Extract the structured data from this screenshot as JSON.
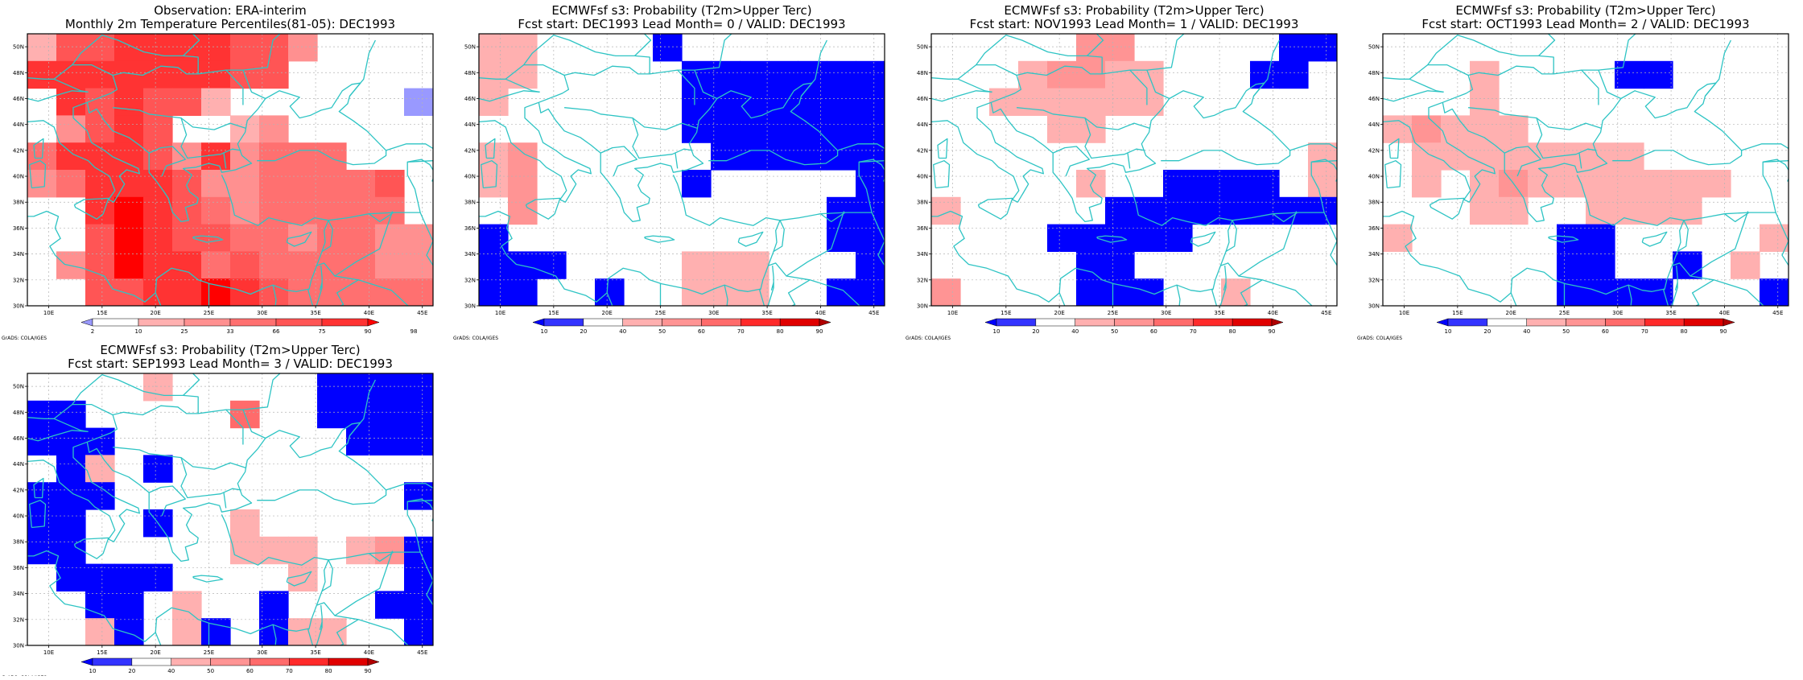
{
  "figure": {
    "credit": "GrADS: COLA/IGES"
  },
  "palettes": {
    "obs": [
      "#9999ff",
      "#ffffff",
      "#ffb0b0",
      "#ff9090",
      "#ff7070",
      "#ff5555",
      "#ff3333",
      "#ff0000"
    ],
    "prob": [
      "#0000ff",
      "#3333ff",
      "#ffffff",
      "#ffb0b0",
      "#ff9494",
      "#ff6b6b",
      "#ff2a2a",
      "#e00000",
      "#b00000"
    ]
  },
  "coastline_color": "#2ec4c4",
  "panels": [
    {
      "id": "obs",
      "title1": "Observation: ERA-interim",
      "title2": "Monthly 2m Temperature Percentiles(81-05): DEC1993",
      "palette": "obs",
      "colorbar": [
        "2",
        "10",
        "25",
        "33",
        "66",
        "75",
        "90",
        "98"
      ],
      "grid_rows": [
        "25566665531111",
        "66666665511111",
        "16565521111110",
        "13565112311111",
        "46665363444111",
        "34666533444451",
        "11676543444441",
        "11576554434433",
        "13576645444433",
        "11556676544444"
      ]
    },
    {
      "id": "lead0",
      "title1": "ECMWFsf s3: Probability (T2m>Upper Terc)",
      "title2": "Fcst start: DEC1993   Lead Month= 0 / VALID: DEC1993",
      "palette": "prob",
      "colorbar": [
        "10",
        "20",
        "40",
        "50",
        "60",
        "70",
        "80",
        "90"
      ],
      "grid_rows": [
        "33222202222222",
        "33222220000000",
        "32222220000000",
        "22222220000000",
        "34222222000000",
        "34222220222220",
        "24222222222200",
        "02222222222200",
        "00022223332220",
        "00220223332200"
      ]
    },
    {
      "id": "lead1",
      "title1": "ECMWFsf s3: Probability (T2m>Upper Terc)",
      "title2": "Fcst start: NOV1993   Lead Month= 1 / VALID: DEC1993",
      "palette": "prob",
      "colorbar": [
        "10",
        "20",
        "40",
        "50",
        "60",
        "70",
        "80",
        "90"
      ],
      "grid_rows": [
        "22222442222200",
        "22234433222002",
        "22333333222222",
        "22223322222222",
        "22222222222223",
        "22222322000023",
        "32222200000000",
        "22220000022222",
        "22222002222222",
        "42222000223222"
      ]
    },
    {
      "id": "lead2",
      "title1": "ECMWFsf s3: Probability (T2m>Upper Terc)",
      "title2": "Fcst start: OCT1993   Lead Month= 2 / VALID: DEC1993",
      "palette": "prob",
      "colorbar": [
        "10",
        "20",
        "40",
        "50",
        "60",
        "70",
        "80",
        "90"
      ],
      "grid_rows": [
        "22222222222222",
        "22232222002222",
        "22232222222222",
        "34333222222222",
        "23333333322222",
        "23234333333322",
        "22233223333222",
        "32222200222223",
        "22222200220232",
        "22222200002220"
      ]
    },
    {
      "id": "lead3",
      "title1": "ECMWFsf s3: Probability (T2m>Upper Terc)",
      "title2": "Fcst start: SEP1993   Lead Month= 3 / VALID: DEC1993",
      "palette": "prob",
      "colorbar": [
        "10",
        "20",
        "40",
        "50",
        "60",
        "70",
        "80",
        "90"
      ],
      "grid_rows": [
        "22223222220000",
        "00222225220000",
        "00022222222000",
        "20320222222222",
        "00022222222220",
        "00220223222222",
        "00222223332340",
        "20000222232220",
        "22002322022200",
        "22302302033220"
      ]
    }
  ],
  "axes": {
    "xticks": [
      "10E",
      "15E",
      "20E",
      "25E",
      "30E",
      "35E",
      "40E",
      "45E"
    ],
    "yticks": [
      "30N",
      "32N",
      "34N",
      "36N",
      "38N",
      "40N",
      "42N",
      "44N",
      "46N",
      "48N",
      "50N"
    ]
  }
}
